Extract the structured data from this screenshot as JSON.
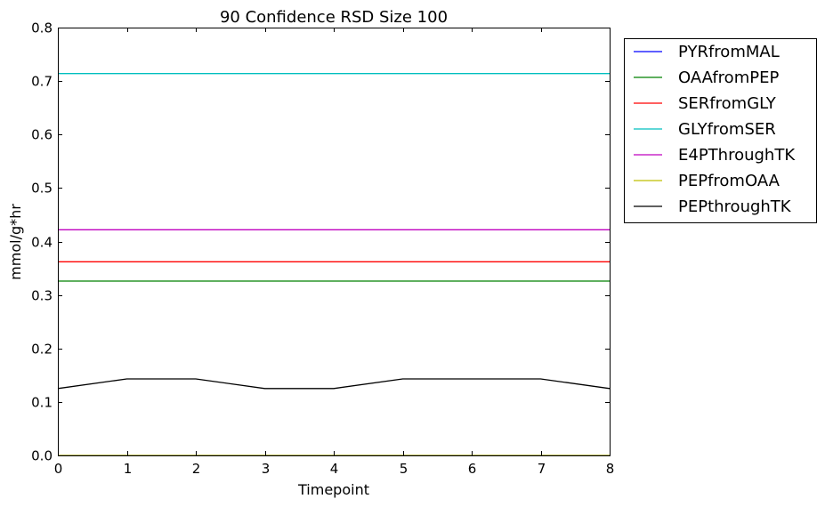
{
  "chart_data": {
    "type": "line",
    "title": "90 Confidence RSD Size 100",
    "xlabel": "Timepoint",
    "ylabel": "mmol/g*hr",
    "xlim": [
      0,
      8
    ],
    "ylim": [
      0,
      0.8
    ],
    "x_ticks": [
      "0",
      "1",
      "2",
      "3",
      "4",
      "5",
      "6",
      "7",
      "8"
    ],
    "y_ticks": [
      "0.0",
      "0.1",
      "0.2",
      "0.3",
      "0.4",
      "0.5",
      "0.6",
      "0.7",
      "0.8"
    ],
    "x": [
      0,
      1,
      2,
      3,
      4,
      5,
      6,
      7,
      8
    ],
    "grid": false,
    "legend_position": "outside-right-top",
    "series": [
      {
        "name": "PYRfromMAL",
        "color": "#0000ff",
        "values": [
          0,
          0,
          0,
          0,
          0,
          0,
          0,
          0,
          0
        ]
      },
      {
        "name": "OAAfromPEP",
        "color": "#008000",
        "values": [
          0.326,
          0.326,
          0.326,
          0.326,
          0.326,
          0.326,
          0.326,
          0.326,
          0.326
        ]
      },
      {
        "name": "SERfromGLY",
        "color": "#ff0000",
        "values": [
          0.362,
          0.362,
          0.362,
          0.362,
          0.362,
          0.362,
          0.362,
          0.362,
          0.362
        ]
      },
      {
        "name": "GLYfromSER",
        "color": "#00bfbf",
        "values": [
          0.714,
          0.714,
          0.714,
          0.714,
          0.714,
          0.714,
          0.714,
          0.714,
          0.714
        ]
      },
      {
        "name": "E4PThroughTK",
        "color": "#bf00bf",
        "values": [
          0.422,
          0.422,
          0.422,
          0.422,
          0.422,
          0.422,
          0.422,
          0.422,
          0.422
        ]
      },
      {
        "name": "PEPfromOAA",
        "color": "#bfbf00",
        "values": [
          0,
          0,
          0,
          0,
          0,
          0,
          0,
          0,
          0
        ]
      },
      {
        "name": "PEPthroughTK",
        "color": "#000000",
        "values": [
          0.125,
          0.143,
          0.143,
          0.125,
          0.125,
          0.143,
          0.143,
          0.143,
          0.125
        ]
      }
    ]
  }
}
